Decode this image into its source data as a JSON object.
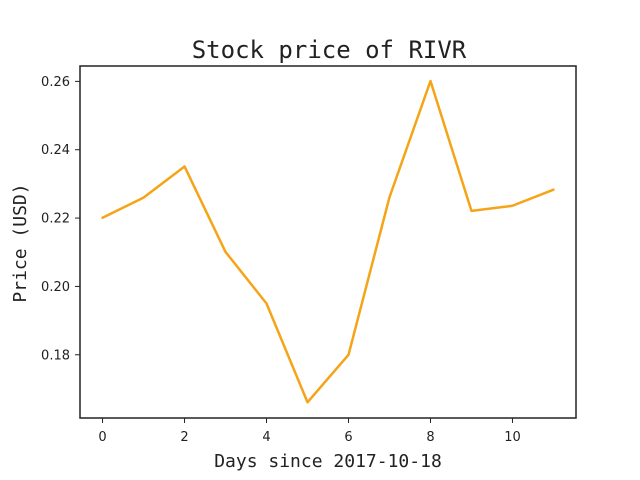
{
  "chart_data": {
    "type": "line",
    "title": "Stock price of RIVR",
    "xlabel": "Days since 2017-10-18",
    "ylabel": "Price (USD)",
    "x": [
      0,
      1,
      2,
      3,
      4,
      5,
      6,
      7,
      8,
      9,
      10,
      11
    ],
    "series": [
      {
        "values": [
          0.2201,
          0.226,
          0.2351,
          0.2101,
          0.195,
          0.1661,
          0.18,
          0.2261,
          0.2601,
          0.2221,
          0.2236,
          0.2283
        ],
        "color": "#f5a418"
      }
    ],
    "xlim": [
      -0.55,
      11.55
    ],
    "ylim": [
      0.1615,
      0.2645
    ],
    "xticks": [
      0,
      2,
      4,
      6,
      8,
      10
    ],
    "xtick_labels": [
      "0",
      "2",
      "4",
      "6",
      "8",
      "10"
    ],
    "yticks": [
      0.18,
      0.2,
      0.22,
      0.24,
      0.26
    ],
    "ytick_labels": [
      "0.18",
      "0.20",
      "0.22",
      "0.24",
      "0.26"
    ],
    "grid": false,
    "legend": "none"
  }
}
